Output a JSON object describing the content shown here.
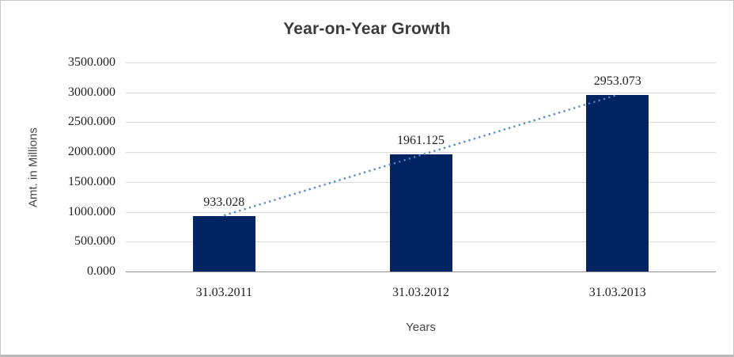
{
  "chart_data": {
    "type": "bar",
    "title": "Year-on-Year Growth",
    "xlabel": "Years",
    "ylabel": "Amt. in Millions",
    "categories": [
      "31.03.2011",
      "31.03.2012",
      "31.03.2013"
    ],
    "values": [
      933.028,
      1961.125,
      2953.073
    ],
    "value_labels": [
      "933.028",
      "1961.125",
      "2953.073"
    ],
    "yticks": [
      "3500.000",
      "3000.000",
      "2500.000",
      "2000.000",
      "1500.000",
      "1000.000",
      "500.000",
      "0.000"
    ],
    "ylim": [
      0,
      3500
    ],
    "ytick_step": 500,
    "grid": true,
    "legend": "none",
    "trendline": {
      "style": "dotted",
      "shape": "linear"
    },
    "colors": {
      "bar": "#042363",
      "trendline": "#4f86c8",
      "gridline": "#d9d9d9",
      "axis_line": "#8e8e8e",
      "title_text": "#3b3b3b",
      "axis_title_text": "#474747",
      "tick_text": "#1f1f1f",
      "background": "#ffffff",
      "border": "#c9c9c9"
    }
  }
}
